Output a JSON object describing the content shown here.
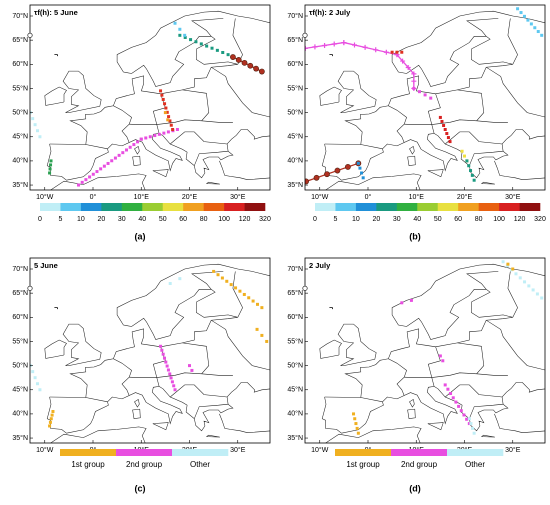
{
  "panels": [
    {
      "title": "τf(h): 5 June",
      "label": "(a)",
      "legend": "colorbar"
    },
    {
      "title": "τf(h): 2 July",
      "label": "(b)",
      "legend": "colorbar"
    },
    {
      "title": "5 June",
      "label": "(c)",
      "legend": "groups"
    },
    {
      "title": "2 July",
      "label": "(d)",
      "legend": "groups"
    }
  ],
  "lat_labels": [
    "70°N",
    "65°N",
    "60°N",
    "55°N",
    "50°N",
    "45°N",
    "40°N",
    "35°N"
  ],
  "lon_labels": [
    "10°W",
    "0°",
    "10°E",
    "20°E",
    "30°E"
  ],
  "colorbar_labels": [
    "0",
    "5",
    "10",
    "20",
    "30",
    "40",
    "50",
    "60",
    "80",
    "100",
    "120",
    "320"
  ],
  "groups": [
    "1st group",
    "2nd group",
    "Other"
  ]
}
